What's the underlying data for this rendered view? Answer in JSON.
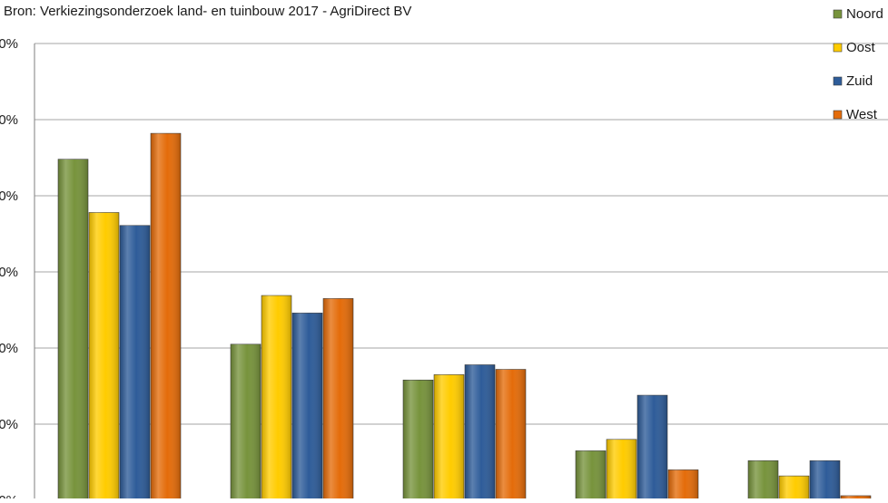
{
  "chart_data": {
    "type": "bar",
    "source_note": "Bron: Verkiezingsonderzoek land- en tuinbouw 2017 - AgriDirect BV",
    "title": "",
    "xlabel": "",
    "ylabel": "",
    "ylim": [
      0,
      60
    ],
    "yticks": [
      0,
      10,
      20,
      30,
      40,
      50,
      60
    ],
    "ytick_labels_visible": [
      "0%",
      "0%",
      "0%",
      "0%",
      "0%",
      "0%",
      "0%"
    ],
    "grid": "horizontal",
    "legend_position": "top-right",
    "categories": [
      "",
      "",
      "",
      "",
      ""
    ],
    "series": [
      {
        "name": "Noord",
        "color": "#77933c",
        "values": [
          44.8,
          20.5,
          15.8,
          6.5,
          5.2
        ]
      },
      {
        "name": "Oost",
        "color": "#ffcc00",
        "values": [
          37.8,
          26.9,
          16.5,
          8.0,
          3.2
        ]
      },
      {
        "name": "Zuid",
        "color": "#2e5c99",
        "values": [
          36.1,
          24.6,
          17.8,
          13.8,
          5.2
        ]
      },
      {
        "name": "West",
        "color": "#e46c0a",
        "values": [
          48.2,
          26.5,
          17.2,
          4.0,
          0.6
        ]
      }
    ]
  }
}
